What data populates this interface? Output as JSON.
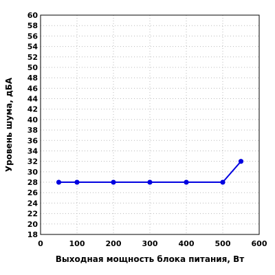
{
  "chart_data": {
    "type": "line",
    "title": "",
    "xlabel": "Выходная мощность блока питания, Вт",
    "ylabel": "Уровень шума, дБА",
    "xlim": [
      0,
      600
    ],
    "ylim": [
      18,
      60
    ],
    "x_ticks": [
      0,
      100,
      200,
      300,
      400,
      500,
      600
    ],
    "y_ticks": [
      18,
      20,
      22,
      24,
      26,
      28,
      30,
      32,
      34,
      36,
      38,
      40,
      42,
      44,
      46,
      48,
      50,
      52,
      54,
      56,
      58,
      60
    ],
    "grid": true,
    "series": [
      {
        "color": "#0000e0",
        "marker": "circle",
        "x": [
          50,
          100,
          200,
          300,
          400,
          500,
          550
        ],
        "y": [
          28,
          28,
          28,
          28,
          28,
          28,
          32
        ]
      }
    ]
  }
}
